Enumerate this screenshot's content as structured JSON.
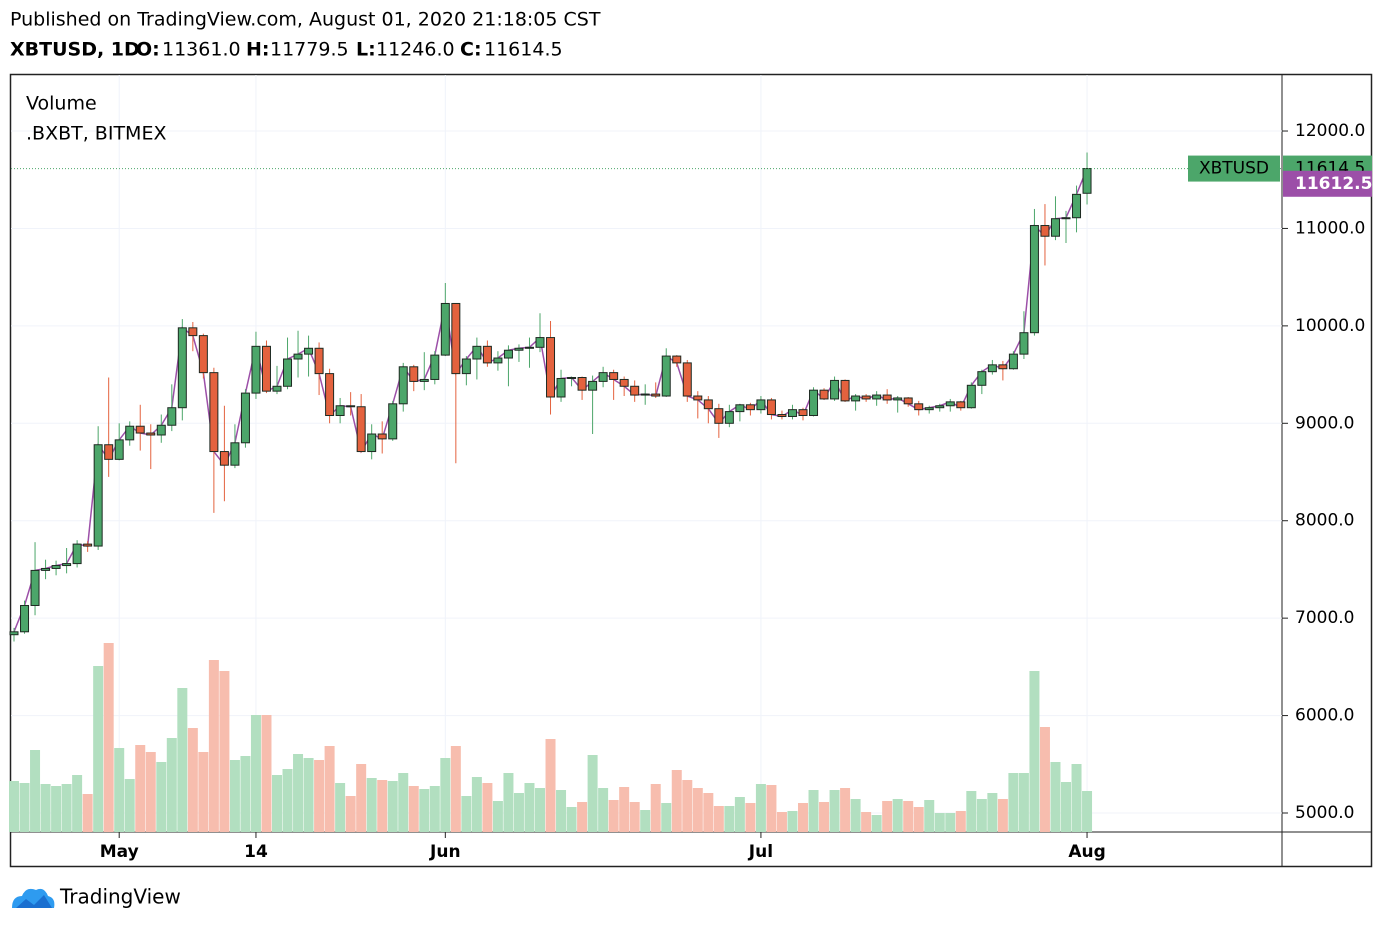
{
  "header": {
    "published": "Published on TradingView.com, August 01, 2020 21:18:05 CST",
    "symbol": "XBTUSD, 1D",
    "o_label": "O:",
    "o": "11361.0",
    "h_label": "H:",
    "h": "11779.5",
    "l_label": "L:",
    "l": "11246.0",
    "c_label": "C:",
    "c": "11614.5"
  },
  "chart_data": {
    "type": "candlestick",
    "legend": {
      "volume": "Volume",
      "index": ".BXBT, BITMEX"
    },
    "symbol_tag": "XBTUSD",
    "last_price": 11614.5,
    "index_price": 11612.5,
    "up_color": "#4ca66a",
    "down_color": "#e4623e",
    "index_color": "#9c4fa8",
    "volume_up_color": "#b2dfc0",
    "volume_down_color": "#f7bdae",
    "grid": true,
    "ylim": [
      4805,
      12575
    ],
    "yticks": [
      {
        "value": 5000,
        "label": "5000.0"
      },
      {
        "value": 6000,
        "label": "6000.0"
      },
      {
        "value": 7000,
        "label": "7000.0"
      },
      {
        "value": 8000,
        "label": "8000.0"
      },
      {
        "value": 9000,
        "label": "9000.0"
      },
      {
        "value": 10000,
        "label": "10000.0"
      },
      {
        "value": 11000,
        "label": "11000.0"
      },
      {
        "value": 12000,
        "label": "12000.0"
      }
    ],
    "categories": [
      null,
      null,
      null,
      null,
      null,
      null,
      null,
      null,
      null,
      null,
      "May",
      null,
      null,
      null,
      null,
      null,
      null,
      null,
      null,
      null,
      null,
      null,
      null,
      "14",
      null,
      null,
      null,
      null,
      null,
      null,
      null,
      null,
      null,
      null,
      null,
      null,
      null,
      null,
      null,
      null,
      null,
      "Jun",
      null,
      null,
      null,
      null,
      null,
      null,
      null,
      null,
      null,
      null,
      null,
      null,
      null,
      null,
      null,
      null,
      null,
      null,
      null,
      null,
      null,
      null,
      null,
      null,
      null,
      null,
      null,
      null,
      null,
      "Jul",
      null,
      null,
      null,
      null,
      null,
      null,
      null,
      null,
      null,
      null,
      null,
      null,
      null,
      null,
      null,
      null,
      null,
      null,
      null,
      null,
      null,
      null,
      null,
      null,
      null,
      null,
      null,
      null,
      null,
      null,
      "Aug"
    ],
    "open": [
      6830,
      6860,
      7130,
      7490,
      7510,
      7540,
      7560,
      7760,
      7740,
      8780,
      8630,
      8830,
      8970,
      8900,
      8880,
      8980,
      9160,
      9980,
      9900,
      9520,
      8710,
      8570,
      8800,
      9310,
      9790,
      9330,
      9380,
      9660,
      9710,
      9770,
      9510,
      9080,
      9180,
      9170,
      8710,
      8890,
      8840,
      9200,
      9580,
      9430,
      9450,
      9700,
      10230,
      9510,
      9660,
      9790,
      9620,
      9670,
      9750,
      9770,
      9780,
      9880,
      9270,
      9460,
      9470,
      9340,
      9430,
      9520,
      9450,
      9380,
      9290,
      9300,
      9280,
      9690,
      9620,
      9280,
      9240,
      9150,
      9000,
      9120,
      9190,
      9140,
      9240,
      9090,
      9070,
      9140,
      9080,
      9340,
      9250,
      9440,
      9230,
      9280,
      9250,
      9290,
      9240,
      9260,
      9200,
      9140,
      9160,
      9180,
      9220,
      9160,
      9390,
      9530,
      9600,
      9560,
      9710,
      9930,
      11030,
      10920,
      11100,
      11110,
      11361
    ],
    "high": [
      6900,
      7180,
      7780,
      7600,
      7590,
      7720,
      7800,
      7790,
      8970,
      9470,
      9000,
      9020,
      9190,
      8990,
      9090,
      9400,
      10070,
      10040,
      9920,
      9570,
      9180,
      8990,
      9350,
      9940,
      9850,
      9590,
      9880,
      9950,
      9900,
      9830,
      9560,
      9260,
      9320,
      9300,
      8990,
      9020,
      9230,
      9620,
      9600,
      9730,
      9740,
      10440,
      10230,
      9690,
      9880,
      9850,
      9740,
      9800,
      9810,
      9880,
      10130,
      10050,
      9550,
      9480,
      9480,
      9490,
      9580,
      9550,
      9480,
      9440,
      9400,
      9420,
      9770,
      9700,
      9650,
      9330,
      9280,
      9200,
      9190,
      9200,
      9210,
      9280,
      9260,
      9130,
      9190,
      9160,
      9370,
      9360,
      9480,
      9450,
      9300,
      9300,
      9330,
      9350,
      9280,
      9270,
      9230,
      9180,
      9200,
      9250,
      9230,
      9420,
      9550,
      9650,
      9640,
      9740,
      10150,
      11200,
      11250,
      11330,
      11180,
      11440,
      11779.5
    ],
    "low": [
      6760,
      6840,
      7030,
      7400,
      7440,
      7460,
      7520,
      7680,
      7700,
      8450,
      8620,
      8770,
      8720,
      8530,
      8800,
      8920,
      9030,
      9740,
      9460,
      8080,
      8200,
      8540,
      8750,
      9250,
      9310,
      9300,
      9350,
      9470,
      9480,
      9290,
      9000,
      9000,
      9080,
      8700,
      8630,
      8690,
      8820,
      9120,
      9330,
      9340,
      9400,
      9690,
      8590,
      9390,
      9450,
      9580,
      9540,
      9380,
      9630,
      9570,
      9730,
      9090,
      9220,
      9380,
      9240,
      8890,
      9370,
      9240,
      9280,
      9220,
      9190,
      9260,
      9270,
      9580,
      9220,
      9050,
      9000,
      8850,
      8960,
      9020,
      9080,
      9100,
      9040,
      9040,
      9040,
      9030,
      9070,
      9240,
      9230,
      9220,
      9130,
      9220,
      9180,
      9200,
      9110,
      9170,
      9080,
      9100,
      9120,
      9120,
      9130,
      9150,
      9300,
      9500,
      9440,
      9550,
      9660,
      9900,
      10620,
      10880,
      10850,
      10960,
      11246
    ],
    "close": [
      6860,
      7130,
      7490,
      7510,
      7540,
      7560,
      7760,
      7740,
      8780,
      8630,
      8830,
      8970,
      8900,
      8880,
      8980,
      9160,
      9980,
      9900,
      9520,
      8710,
      8570,
      8800,
      9310,
      9790,
      9330,
      9380,
      9660,
      9710,
      9770,
      9510,
      9080,
      9180,
      9170,
      8710,
      8890,
      8840,
      9200,
      9580,
      9430,
      9450,
      9700,
      10230,
      9510,
      9660,
      9790,
      9620,
      9670,
      9750,
      9770,
      9780,
      9880,
      9270,
      9460,
      9470,
      9340,
      9430,
      9520,
      9450,
      9380,
      9290,
      9300,
      9280,
      9690,
      9620,
      9280,
      9240,
      9150,
      9000,
      9120,
      9190,
      9140,
      9240,
      9090,
      9070,
      9140,
      9080,
      9340,
      9250,
      9440,
      9230,
      9280,
      9250,
      9290,
      9240,
      9260,
      9200,
      9140,
      9160,
      9180,
      9220,
      9160,
      9390,
      9530,
      9600,
      9560,
      9710,
      9930,
      11030,
      10920,
      11100,
      11110,
      11350,
      11614.5
    ],
    "volume": [
      51,
      49,
      82,
      48,
      46,
      48,
      57,
      38,
      166,
      189,
      84,
      53,
      87,
      80,
      70,
      94,
      144,
      104,
      80,
      172,
      161,
      72,
      76,
      117,
      117,
      57,
      63,
      78,
      74,
      72,
      86,
      49,
      36,
      68,
      54,
      52,
      51,
      59,
      46,
      43,
      46,
      74,
      86,
      36,
      55,
      49,
      31,
      59,
      39,
      49,
      44,
      93,
      42,
      25,
      30,
      77,
      44,
      32,
      45,
      30,
      22,
      48,
      29,
      62,
      52,
      44,
      39,
      26,
      26,
      35,
      29,
      48,
      47,
      20,
      21,
      29,
      42,
      30,
      42,
      44,
      33,
      20,
      17,
      31,
      33,
      31,
      25,
      32,
      19,
      19,
      21,
      41,
      33,
      39,
      33,
      59,
      59,
      161,
      105,
      70,
      50,
      68,
      41
    ]
  },
  "footer": {
    "brand": "TradingView"
  }
}
